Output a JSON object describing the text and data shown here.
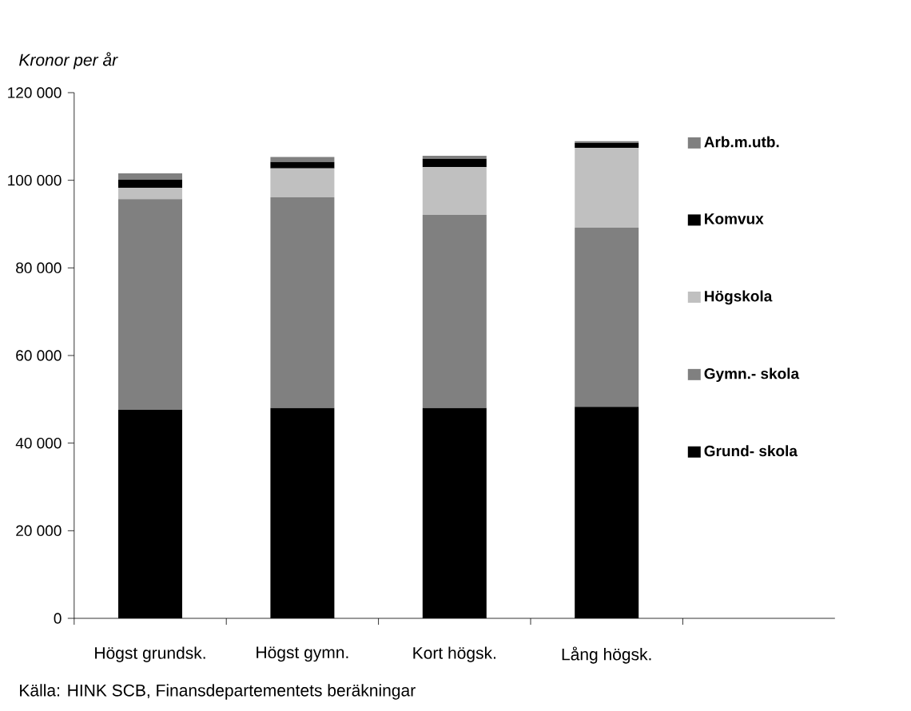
{
  "chart_data": {
    "type": "bar",
    "stacked": true,
    "title": "Kronor per år",
    "annotations": [
      "Källa: HINK SCB, Finansdepartementets beräkningar"
    ],
    "categories": [
      "Högst grundsk.",
      "Högst gymn.",
      "Kort högsk.",
      "Lång högsk."
    ],
    "series": [
      {
        "name": "Grund- skola",
        "color": "#000000",
        "values": [
          47600,
          48000,
          48000,
          48300
        ]
      },
      {
        "name": "Gymn.- skola",
        "color": "#808080",
        "values": [
          48100,
          48100,
          44100,
          40900
        ]
      },
      {
        "name": "Högskola",
        "color": "#c0c0c0",
        "values": [
          2600,
          6600,
          10900,
          18200
        ]
      },
      {
        "name": "Komvux",
        "color": "#000000",
        "values": [
          1800,
          1500,
          1900,
          1100
        ]
      },
      {
        "name": "Arb.m.utb.",
        "color": "#808080",
        "values": [
          1500,
          1100,
          700,
          400
        ]
      }
    ],
    "ylim": [
      0,
      120000
    ],
    "yticks": [
      {
        "value": 0,
        "label": "0"
      },
      {
        "value": 20000,
        "label": "20 000"
      },
      {
        "value": 40000,
        "label": "40 000"
      },
      {
        "value": 60000,
        "label": "60 000"
      },
      {
        "value": 80000,
        "label": "80 000"
      },
      {
        "value": 100000,
        "label": "100 000"
      },
      {
        "value": 120000,
        "label": "120 000"
      }
    ],
    "legend": "right",
    "grid": false
  }
}
